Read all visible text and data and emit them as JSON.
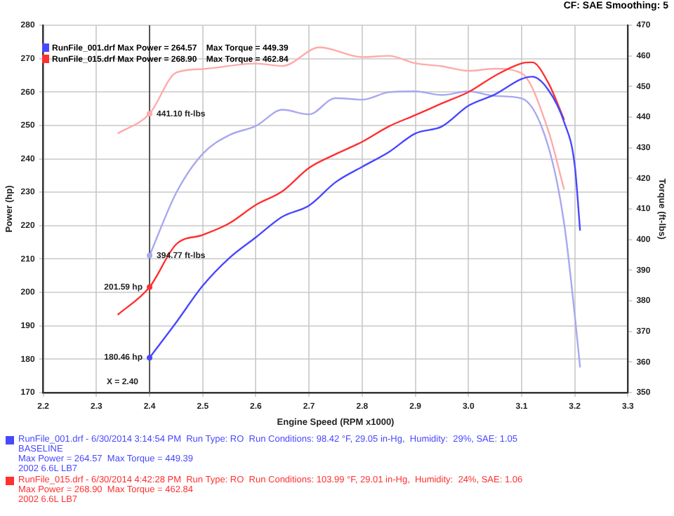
{
  "chart_data": {
    "type": "line",
    "xlabel": "Engine Speed (RPM x1000)",
    "ylabel": "Power (hp)",
    "y2label": "Torque (ft-lbs)",
    "xlim": [
      2.2,
      3.3
    ],
    "xticks": [
      2.2,
      2.3,
      2.4,
      2.5,
      2.6,
      2.7,
      2.8,
      2.9,
      {
        "value": 3,
        "label": "3.0"
      },
      3.1,
      3.2,
      3.3
    ],
    "ylim": [
      170,
      280
    ],
    "yticks": [
      170,
      180,
      190,
      200,
      210,
      220,
      230,
      240,
      250,
      260,
      270,
      280
    ],
    "y2lim": [
      350,
      470
    ],
    "y2ticks": [
      350,
      360,
      370,
      380,
      390,
      400,
      410,
      420,
      430,
      440,
      450,
      460,
      470
    ],
    "grid": true,
    "legend": "top left",
    "marker": "none",
    "line_style": "solid",
    "series": [
      {
        "name": "RunFile_001.drf Max Power = 264.57    Max Torque = 449.39",
        "color": "#4848ff",
        "x": [
          2.4,
          2.45,
          2.5,
          2.55,
          2.6,
          2.65,
          2.7,
          2.75,
          2.8,
          2.85,
          2.9,
          2.95,
          3.0,
          3.05,
          3.1,
          3.12,
          3.15,
          3.18,
          3.2,
          3.21
        ],
        "values": [
          180.46,
          191,
          202,
          210.3,
          216.5,
          222.7,
          226,
          233,
          237.6,
          242,
          247.6,
          249.7,
          255.9,
          259.3,
          263.9,
          264.6,
          260.7,
          251,
          238,
          218.5
        ],
        "value_labels": [
          "180.46 hp",
          null,
          null,
          null,
          null,
          null,
          null,
          null,
          null,
          null,
          null,
          null,
          null,
          null,
          null,
          null,
          null,
          null,
          null,
          null
        ]
      },
      {
        "name": "RunFile_015.drf Max Power = 268.90    Max Torque = 462.84",
        "color": "#ff3030",
        "x": [
          2.34,
          2.4,
          2.45,
          2.5,
          2.55,
          2.6,
          2.65,
          2.7,
          2.75,
          2.8,
          2.85,
          2.9,
          2.95,
          3.0,
          3.05,
          3.1,
          3.12,
          3.15,
          3.18
        ],
        "values": [
          193.3,
          201.59,
          214.4,
          217.2,
          220.7,
          226.2,
          230.3,
          237.3,
          241.4,
          245.1,
          249.7,
          253.1,
          256.6,
          260,
          264.9,
          268.6,
          268.9,
          262.8,
          251.7
        ],
        "value_labels": [
          null,
          "201.59 hp",
          null,
          null,
          null,
          null,
          null,
          null,
          null,
          null,
          null,
          null,
          null,
          null,
          null,
          null,
          null,
          null,
          null
        ]
      },
      {
        "color": "#a8a8f0",
        "axis": "y2",
        "x": [
          2.4,
          2.45,
          2.5,
          2.55,
          2.6,
          2.65,
          2.7,
          2.75,
          2.8,
          2.85,
          2.9,
          2.95,
          3.0,
          3.05,
          3.1,
          3.15,
          3.18,
          3.2,
          3.21
        ],
        "values": [
          394.77,
          415.2,
          428,
          434.1,
          437.1,
          442.4,
          440.9,
          446.2,
          445.7,
          448.1,
          448.4,
          447.2,
          448.4,
          446.9,
          446.1,
          430.5,
          405.2,
          375.3,
          358.2
        ],
        "value_labels": [
          "394.77 ft-lbs",
          null,
          null,
          null,
          null,
          null,
          null,
          null,
          null,
          null,
          null,
          null,
          null,
          null,
          null,
          null,
          null,
          null,
          null
        ]
      },
      {
        "color": "#ffaaaa",
        "axis": "y2",
        "x": [
          2.34,
          2.4,
          2.45,
          2.5,
          2.6,
          2.65,
          2.72,
          2.8,
          2.85,
          2.9,
          2.95,
          3.0,
          3.05,
          3.1,
          3.15,
          3.18
        ],
        "values": [
          434.6,
          441.1,
          454.5,
          455.7,
          457.5,
          456.7,
          462.8,
          459.6,
          460,
          457.6,
          456.6,
          455.1,
          455.8,
          454.3,
          435.7,
          416.3
        ],
        "value_labels": [
          null,
          "441.10 ft-lbs",
          null,
          null,
          null,
          null,
          null,
          null,
          null,
          null,
          null,
          null,
          null,
          null,
          null,
          null
        ]
      }
    ],
    "ref_lines": [
      {
        "axis": "x",
        "value": 2.4,
        "label": "X = 2.40",
        "color": "#555555"
      }
    ],
    "annotations": [
      "CF: SAE  Smoothing: 5",
      "RunFile_001.drf - 6/30/2014 3:14:54 PM  Run Type: RO  Run Conditions: 98.42 °F, 29.05 in-Hg,  Humidity:  29%, SAE: 1.05\nBASELINE\nMax Power = 264.57  Max Torque = 449.39\n2002 6.6L LB7",
      "RunFile_015.drf - 6/30/2014 4:42:28 PM  Run Type: RO  Run Conditions: 103.99 °F, 29.01 in-Hg,  Humidity:  24%, SAE: 1.06\nMax Power = 268.90  Max Torque = 462.84\n2002 6.6L LB7"
    ]
  }
}
